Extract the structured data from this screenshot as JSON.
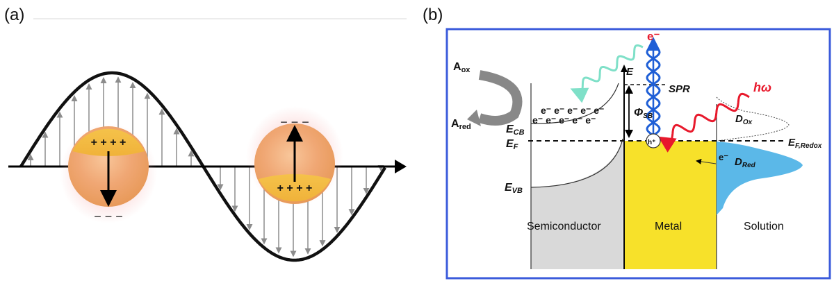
{
  "panel_a": {
    "label": "(a)",
    "particle_left": {
      "top_charges": "+  +  +  +",
      "bottom_charges": "−  −  −"
    },
    "particle_right": {
      "top_charges": "−  −  −",
      "bottom_charges": "+  +  +  +"
    }
  },
  "panel_b": {
    "label": "(b)",
    "a_ox": "A",
    "a_ox_sub": "ox",
    "a_red": "A",
    "a_red_sub": "red",
    "electrons_top": "e⁻ e⁻ e⁻ e⁻ e⁻",
    "electrons_bottom": "e⁻ e⁻ e⁻ e⁻ e⁻",
    "e_cb": "E",
    "e_cb_sub": "CB",
    "e_f": "E",
    "e_f_sub": "F",
    "e_vb": "E",
    "e_vb_sub": "VB",
    "energy_axis": "E",
    "phi_sb": "Φ",
    "phi_sb_sub": "SB",
    "spr": "SPR",
    "hot_electron": "e⁻",
    "hot_hole": "h⁺",
    "photon": "hω",
    "d_ox": "D",
    "d_ox_sub": "Ox",
    "d_red": "D",
    "d_red_sub": "Red",
    "transfer_electron": "e⁻",
    "e_f_redox": "E",
    "e_f_redox_sub": "F,Redox",
    "region_semiconductor": "Semiconductor",
    "region_metal": "Metal",
    "region_solution": "Solution",
    "colors": {
      "border": "#3b5bdb",
      "metal": "#f7e12a",
      "semiconductor": "#d9d9d9",
      "d_red_fill": "#5bb8e8",
      "photon": "#e8192c",
      "emitted": "#7fe0c8",
      "plasmon": "#1f5fd6"
    }
  }
}
